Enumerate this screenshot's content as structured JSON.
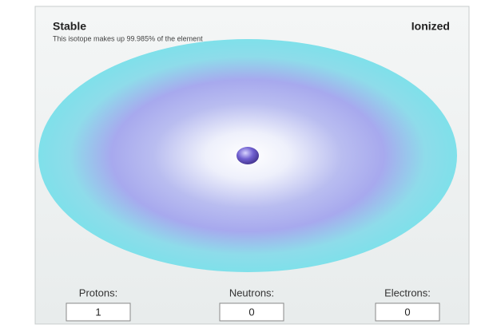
{
  "header": {
    "status": "Stable",
    "charge": "Ionized",
    "note": "This isotope makes up 99.985% of the element"
  },
  "counters": [
    {
      "label": "Protons:",
      "value": 1
    },
    {
      "label": "Neutrons:",
      "value": 0
    },
    {
      "label": "Electrons:",
      "value": 0
    }
  ]
}
